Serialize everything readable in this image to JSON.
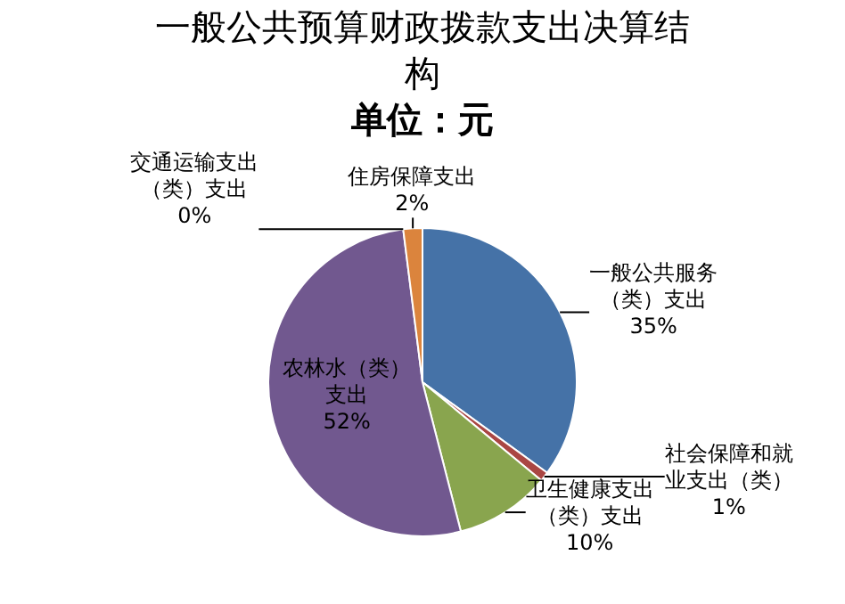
{
  "chart_data": {
    "type": "pie",
    "title": "一般公共预算财政拨款支出决算结构",
    "subtitle": "单位：元",
    "categories": [
      "一般公共服务（类）支出",
      "社会保障和就业支出（类）",
      "卫生健康支出（类）支出",
      "农林水（类）支出",
      "交通运输支出（类）支出",
      "住房保障支出"
    ],
    "values": [
      35,
      1,
      10,
      52,
      0,
      2
    ],
    "value_labels": [
      "35%",
      "1%",
      "10%",
      "52%",
      "0%",
      "2%"
    ],
    "colors": [
      "#4572a7",
      "#aa4643",
      "#89a54e",
      "#71588f",
      "#4198af",
      "#db843d"
    ],
    "legend": false
  }
}
